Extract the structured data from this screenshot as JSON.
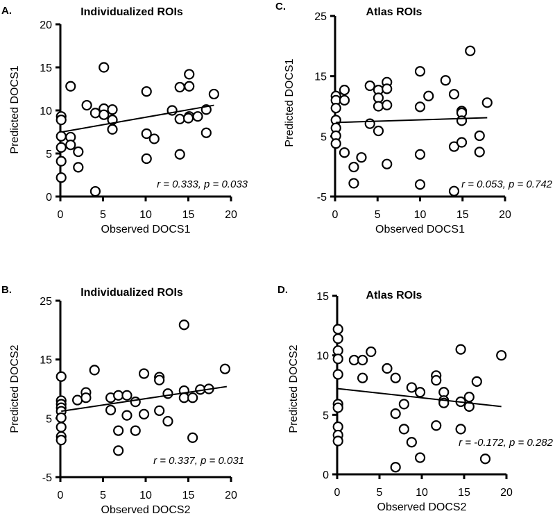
{
  "chart_data": [
    {
      "id": "A",
      "type": "scatter",
      "panel_label": "A.",
      "title": "Individualized ROIs",
      "xlabel": "Observed DOCS1",
      "ylabel": "Predicted DOCS1",
      "xlim": [
        0,
        20
      ],
      "ylim": [
        0,
        20
      ],
      "xticks": [
        0,
        5,
        10,
        15,
        20
      ],
      "yticks": [
        0,
        5,
        10,
        15,
        20
      ],
      "annotation": "r = 0.333, p = 0.033",
      "fit_line": [
        [
          0.2,
          7.5
        ],
        [
          18,
          10.6
        ]
      ],
      "points": [
        [
          0.1,
          9.3
        ],
        [
          0.1,
          8.9
        ],
        [
          0.1,
          7.0
        ],
        [
          0.1,
          5.7
        ],
        [
          0.1,
          4.1
        ],
        [
          0.1,
          2.2
        ],
        [
          1.2,
          12.8
        ],
        [
          1.2,
          6.9
        ],
        [
          1.2,
          6.0
        ],
        [
          2.1,
          5.2
        ],
        [
          2.1,
          3.4
        ],
        [
          3.1,
          10.6
        ],
        [
          4.1,
          9.7
        ],
        [
          4.1,
          0.6
        ],
        [
          5.1,
          15.0
        ],
        [
          5.1,
          10.2
        ],
        [
          5.1,
          9.5
        ],
        [
          6.1,
          10.1
        ],
        [
          6.1,
          8.9
        ],
        [
          6.1,
          7.8
        ],
        [
          10.1,
          12.2
        ],
        [
          10.1,
          7.3
        ],
        [
          10.1,
          4.4
        ],
        [
          11,
          6.7
        ],
        [
          13.1,
          10.0
        ],
        [
          14,
          12.7
        ],
        [
          14,
          9.0
        ],
        [
          14,
          4.9
        ],
        [
          15.1,
          14.2
        ],
        [
          15.1,
          12.8
        ],
        [
          15.1,
          9.3
        ],
        [
          15,
          9.1
        ],
        [
          16.1,
          9.3
        ],
        [
          17.1,
          10.1
        ],
        [
          17.1,
          7.4
        ],
        [
          18,
          11.9
        ]
      ]
    },
    {
      "id": "C",
      "type": "scatter",
      "panel_label": "C.",
      "title": "Atlas ROIs",
      "xlabel": "Observed DOCS1",
      "ylabel": "Predicted DOCS1",
      "xlim": [
        0,
        20
      ],
      "ylim": [
        -5,
        25
      ],
      "xticks": [
        0,
        5,
        10,
        15,
        20
      ],
      "yticks": [
        -5,
        5,
        15,
        25
      ],
      "annotation": "r = 0.053, p = 0.742",
      "fit_line": [
        [
          0.1,
          7.3
        ],
        [
          17.9,
          8.1
        ]
      ],
      "points": [
        [
          0.1,
          11.7
        ],
        [
          0.1,
          11.0
        ],
        [
          0.1,
          9.7
        ],
        [
          0.1,
          7.7
        ],
        [
          0.1,
          6.4
        ],
        [
          0.1,
          5.1
        ],
        [
          0.1,
          3.8
        ],
        [
          1.1,
          12.7
        ],
        [
          1.1,
          11.0
        ],
        [
          1.1,
          2.3
        ],
        [
          2.2,
          -0.1
        ],
        [
          2.2,
          -2.8
        ],
        [
          3.1,
          1.5
        ],
        [
          4.1,
          13.4
        ],
        [
          4.1,
          7.1
        ],
        [
          5.1,
          12.7
        ],
        [
          5.1,
          11.4
        ],
        [
          5.1,
          10.0
        ],
        [
          5.1,
          5.9
        ],
        [
          6.1,
          14.0
        ],
        [
          6.1,
          12.9
        ],
        [
          6.1,
          10.2
        ],
        [
          6.1,
          0.4
        ],
        [
          10,
          15.8
        ],
        [
          10,
          9.9
        ],
        [
          10,
          2.0
        ],
        [
          10,
          -3.0
        ],
        [
          11,
          11.7
        ],
        [
          13,
          14.3
        ],
        [
          14,
          12.0
        ],
        [
          14,
          3.3
        ],
        [
          14,
          -4.1
        ],
        [
          14.9,
          9.2
        ],
        [
          14.9,
          8.9
        ],
        [
          14.9,
          7.6
        ],
        [
          14.9,
          4.0
        ],
        [
          15.9,
          19.2
        ],
        [
          17,
          5.1
        ],
        [
          17,
          2.4
        ],
        [
          17.9,
          10.6
        ]
      ]
    },
    {
      "id": "B",
      "type": "scatter",
      "panel_label": "B.",
      "title": "Individualized ROIs",
      "xlabel": "Observed DOCS2",
      "ylabel": "Predicted DOCS2",
      "xlim": [
        0,
        20
      ],
      "ylim": [
        -5,
        25
      ],
      "xticks": [
        0,
        5,
        10,
        15,
        20
      ],
      "yticks": [
        -5,
        5,
        15,
        25
      ],
      "annotation": "r = 0.337, p = 0.031",
      "fit_line": [
        [
          0.1,
          6.2
        ],
        [
          19.5,
          10.4
        ]
      ],
      "points": [
        [
          0.1,
          12.1
        ],
        [
          0.1,
          8.0
        ],
        [
          0.1,
          7.4
        ],
        [
          0.1,
          6.8
        ],
        [
          0.1,
          6.2
        ],
        [
          0.1,
          5.1
        ],
        [
          0.1,
          3.5
        ],
        [
          0.1,
          1.9
        ],
        [
          0.1,
          1.3
        ],
        [
          2.0,
          8.1
        ],
        [
          3.0,
          9.4
        ],
        [
          3.0,
          8.5
        ],
        [
          4.0,
          13.2
        ],
        [
          5.9,
          8.5
        ],
        [
          5.9,
          6.4
        ],
        [
          6.8,
          8.9
        ],
        [
          6.8,
          2.9
        ],
        [
          6.8,
          -0.5
        ],
        [
          7.8,
          8.9
        ],
        [
          7.8,
          5.5
        ],
        [
          8.8,
          7.8
        ],
        [
          8.8,
          2.9
        ],
        [
          9.8,
          12.6
        ],
        [
          9.8,
          5.7
        ],
        [
          11.6,
          12.0
        ],
        [
          11.6,
          11.5
        ],
        [
          11.6,
          6.3
        ],
        [
          12.6,
          9.2
        ],
        [
          12.6,
          4.5
        ],
        [
          14.5,
          20.9
        ],
        [
          14.5,
          9.7
        ],
        [
          14.5,
          8.5
        ],
        [
          15.5,
          8.5
        ],
        [
          15.5,
          1.7
        ],
        [
          16.4,
          9.9
        ],
        [
          17.4,
          10.0
        ],
        [
          19.3,
          13.4
        ]
      ]
    },
    {
      "id": "D",
      "type": "scatter",
      "panel_label": "D.",
      "title": "Atlas ROIs",
      "xlabel": "Observed DOCS2",
      "ylabel": "Predicted DOCS2",
      "xlim": [
        0,
        20
      ],
      "ylim": [
        0,
        15
      ],
      "xticks": [
        0,
        5,
        10,
        15,
        20
      ],
      "yticks": [
        0,
        5,
        10,
        15
      ],
      "annotation": "r = -0.172, p = 0.282",
      "fit_line": [
        [
          0.1,
          7.2
        ],
        [
          19.4,
          5.7
        ]
      ],
      "points": [
        [
          0.1,
          12.2
        ],
        [
          0.1,
          11.4
        ],
        [
          0.1,
          10.4
        ],
        [
          0.1,
          9.7
        ],
        [
          0.1,
          8.4
        ],
        [
          0.1,
          5.9
        ],
        [
          0.1,
          5.6
        ],
        [
          0.1,
          4.0
        ],
        [
          0.1,
          3.3
        ],
        [
          0.1,
          2.8
        ],
        [
          2.0,
          9.6
        ],
        [
          3.0,
          9.6
        ],
        [
          3.0,
          8.1
        ],
        [
          4.0,
          10.3
        ],
        [
          5.9,
          8.9
        ],
        [
          6.9,
          8.1
        ],
        [
          6.9,
          5.1
        ],
        [
          6.9,
          0.6
        ],
        [
          7.9,
          5.9
        ],
        [
          7.9,
          3.8
        ],
        [
          8.8,
          7.3
        ],
        [
          8.8,
          2.7
        ],
        [
          9.8,
          6.9
        ],
        [
          9.8,
          1.4
        ],
        [
          11.7,
          8.3
        ],
        [
          11.7,
          7.9
        ],
        [
          11.7,
          4.1
        ],
        [
          12.6,
          6.9
        ],
        [
          12.6,
          6.2
        ],
        [
          12.6,
          6.0
        ],
        [
          14.6,
          10.5
        ],
        [
          14.6,
          6.1
        ],
        [
          14.6,
          3.8
        ],
        [
          15.6,
          6.5
        ],
        [
          15.6,
          5.7
        ],
        [
          16.5,
          7.8
        ],
        [
          17.5,
          1.3
        ],
        [
          19.4,
          10.0
        ]
      ]
    }
  ]
}
